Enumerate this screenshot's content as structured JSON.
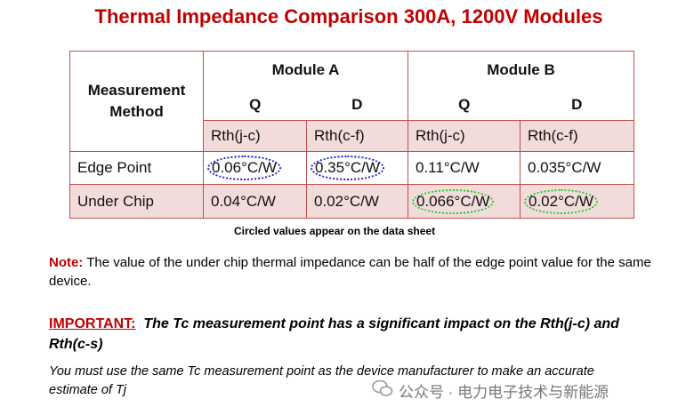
{
  "title": "Thermal Impedance Comparison 300A, 1200V Modules",
  "table": {
    "corner": "Measurement Method",
    "groups": [
      "Module A",
      "Module B"
    ],
    "subheaders": [
      "Q",
      "D",
      "Q",
      "D"
    ],
    "units": [
      "Rth(j-c)",
      "Rth(c-f)",
      "Rth(j-c)",
      "Rth(c-f)"
    ],
    "rows": [
      [
        "Edge Point",
        "0.06°C/W",
        "0.35°C/W",
        "0.11°C/W",
        "0.035°C/W"
      ],
      [
        "Under Chip",
        "0.04°C/W",
        "0.02°C/W",
        "0.066°C/W",
        "0.02°C/W"
      ]
    ]
  },
  "caption": "Circled values appear on the data sheet",
  "note": {
    "label": "Note:",
    "text": "The value of the under chip thermal impedance can be half of the edge point value for the same device."
  },
  "important": {
    "label": "IMPORTANT:",
    "text": "The Tc measurement point has a significant impact on the Rth(j-c) and Rth(c-s)"
  },
  "instruction": "You must use the same Tc measurement point as the device manufacturer to make an accurate estimate of Tj",
  "footer": "公众号 · 电力电子技术与新能源"
}
